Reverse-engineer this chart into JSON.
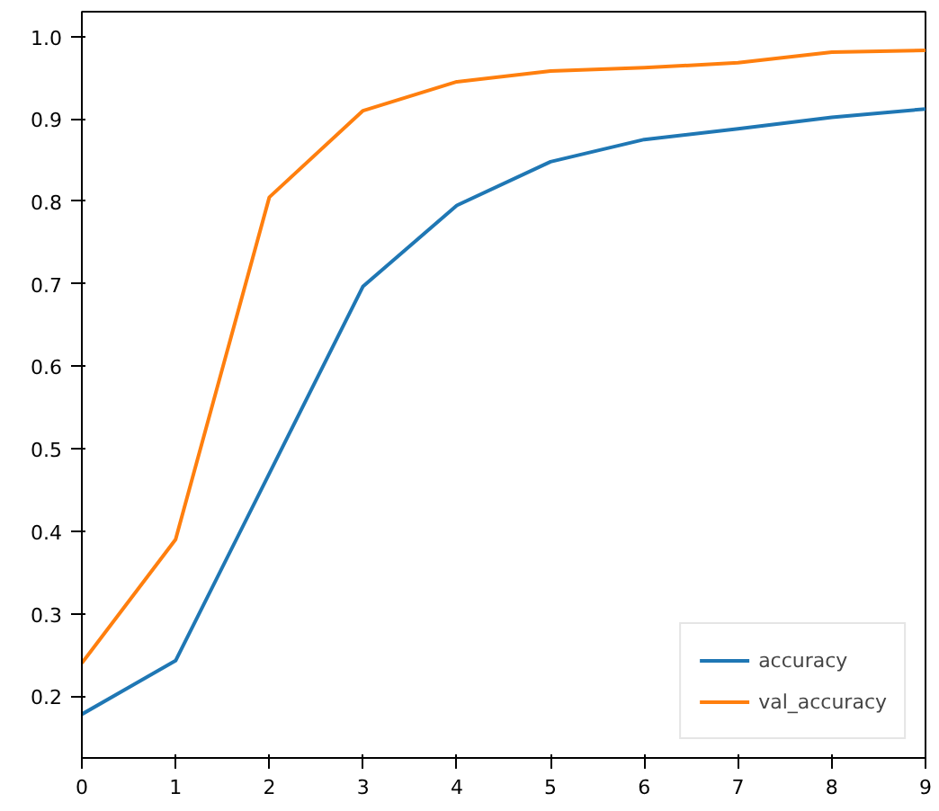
{
  "chart_data": {
    "type": "line",
    "x": [
      0,
      1,
      2,
      3,
      4,
      5,
      6,
      7,
      8,
      9
    ],
    "series": [
      {
        "name": "accuracy",
        "color": "#1f77b4",
        "values": [
          0.178,
          0.243,
          0.47,
          0.697,
          0.795,
          0.848,
          0.875,
          0.888,
          0.902,
          0.912
        ]
      },
      {
        "name": "val_accuracy",
        "color": "#ff7f0e",
        "values": [
          0.24,
          0.39,
          0.805,
          0.91,
          0.945,
          0.958,
          0.962,
          0.968,
          0.981,
          0.983
        ]
      }
    ],
    "xlim": [
      0,
      9
    ],
    "xticks": [
      0,
      1,
      2,
      3,
      4,
      5,
      6,
      7,
      8,
      9
    ],
    "ylim": [
      0.125,
      1.03
    ],
    "yticks": [
      {
        "value": 0.2,
        "label": "0.2"
      },
      {
        "value": 0.3,
        "label": "0.3"
      },
      {
        "value": 0.4,
        "label": "0.4"
      },
      {
        "value": 0.5,
        "label": "0.5"
      },
      {
        "value": 0.6,
        "label": "0.6"
      },
      {
        "value": 0.7,
        "label": "0.7"
      },
      {
        "value": 0.8,
        "label": "0.8"
      },
      {
        "value": 0.9,
        "label": "0.9"
      },
      {
        "value": 1.0,
        "label": "1.0"
      }
    ],
    "grid": false,
    "legend": "bottom right",
    "line_style": "solid"
  }
}
